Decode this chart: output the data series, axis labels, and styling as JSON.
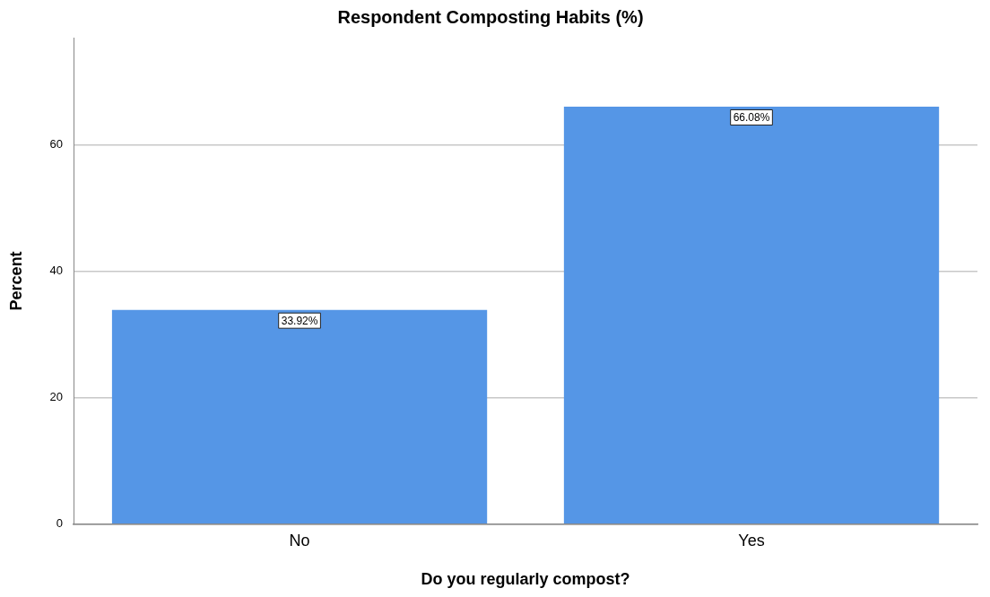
{
  "chart_data": {
    "type": "bar",
    "title": "Respondent Composting Habits (%)",
    "xlabel": "Do you regularly compost?",
    "ylabel": "Percent",
    "categories": [
      "No",
      "Yes"
    ],
    "values": [
      33.92,
      66.08
    ],
    "value_labels": [
      "33.92%",
      "66.08%"
    ],
    "color": "#5596e6",
    "ylim": [
      0,
      77
    ],
    "yticks": [
      0,
      20,
      40,
      60
    ],
    "grid": "y",
    "legend": false
  }
}
